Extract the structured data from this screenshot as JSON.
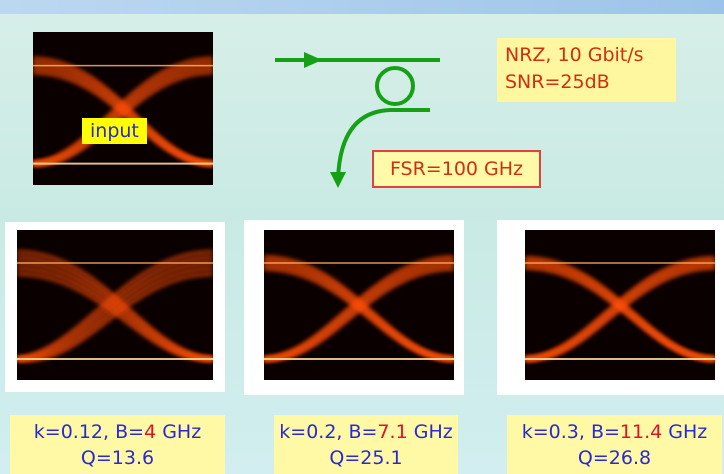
{
  "input_label": "input",
  "signal": {
    "format": "NRZ, 10 Gbit/s",
    "snr": "SNR=25dB"
  },
  "filter": {
    "fsr": "FSR=100 GHz"
  },
  "results": [
    {
      "prefix": "k=0.12, B=",
      "bandwidth": "4",
      "suffix": " GHz",
      "q": "Q=13.6"
    },
    {
      "prefix": "k=0.2, B=",
      "bandwidth": "7.1",
      "suffix": " GHz",
      "q": "Q=25.1"
    },
    {
      "prefix": "k=0.3, B=",
      "bandwidth": "11.4",
      "suffix": " GHz",
      "q": "Q=26.8"
    }
  ]
}
